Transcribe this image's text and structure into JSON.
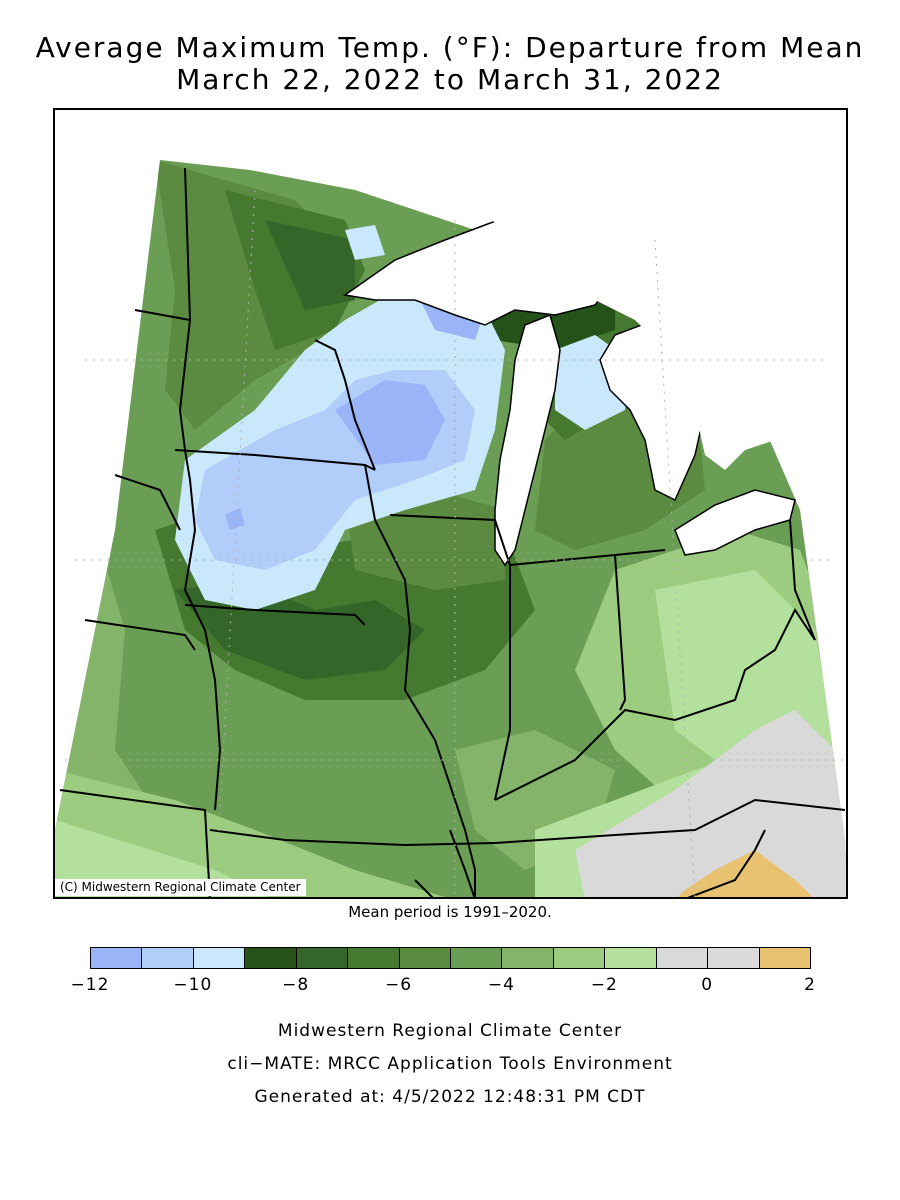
{
  "title": {
    "line1": "Average Maximum Temp. (°F): Departure from Mean",
    "line2": "March 22, 2022 to March 31, 2022"
  },
  "map": {
    "copyright": "(C) Midwestern Regional Climate Center",
    "mean_period": "Mean period is 1991–2020.",
    "colors": {
      "lake": "#ffffff",
      "boundary": "#000000",
      "grid": "#b0b0b0"
    }
  },
  "legend": {
    "bins": [
      {
        "min": -12,
        "max": -11,
        "color": "#9ab4f8"
      },
      {
        "min": -11,
        "max": -10,
        "color": "#b1cdf9"
      },
      {
        "min": -10,
        "max": -9,
        "color": "#c9e8fb"
      },
      {
        "min": -9,
        "max": -8,
        "color": "#245219"
      },
      {
        "min": -8,
        "max": -7,
        "color": "#336628"
      },
      {
        "min": -7,
        "max": -6,
        "color": "#44792f"
      },
      {
        "min": -6,
        "max": -5,
        "color": "#5a8b41"
      },
      {
        "min": -5,
        "max": -4,
        "color": "#6a9e55"
      },
      {
        "min": -4,
        "max": -3,
        "color": "#84b46a"
      },
      {
        "min": -3,
        "max": -2,
        "color": "#9bcc80"
      },
      {
        "min": -2,
        "max": -1,
        "color": "#b3e09c"
      },
      {
        "min": -1,
        "max": 0,
        "color": "#d9d9d9"
      },
      {
        "min": 0,
        "max": 1,
        "color": "#dadada"
      },
      {
        "min": 1,
        "max": 2,
        "color": "#e8c271"
      }
    ],
    "tick_labels": [
      "−12",
      "−10",
      "−8",
      "−6",
      "−4",
      "−2",
      "0",
      "2"
    ],
    "tick_values": [
      -12,
      -10,
      -8,
      -6,
      -4,
      -2,
      0,
      2
    ]
  },
  "footer": {
    "line1": "Midwestern Regional Climate Center",
    "line2": "cli−MATE: MRCC Application Tools Environment",
    "line3": "Generated at: 4/5/2022 12:48:31 PM CDT"
  }
}
